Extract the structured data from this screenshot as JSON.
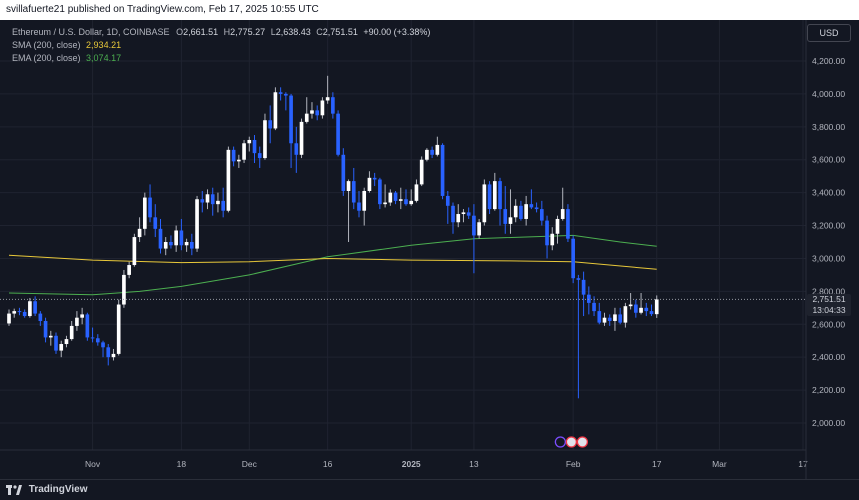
{
  "header": {
    "publisher_text": "svillafuerte21 published on TradingView.com, Feb 17, 2025 10:55 UTC"
  },
  "legend": {
    "symbol": "Ethereum / U.S. Dollar, 1D, COINBASE",
    "open_label": "O",
    "open": "2,661.51",
    "high_label": "H",
    "high": "2,775.27",
    "low_label": "L",
    "low": "2,638.43",
    "close_label": "C",
    "close": "2,751.51",
    "change": "+90.00 (+3.38%)",
    "sma_label": "SMA (200, close)",
    "sma_value": "2,934.21",
    "ema_label": "EMA (200, close)",
    "ema_value": "3,074.17"
  },
  "currency_button": "USD",
  "price_tag": {
    "price": "2,751.51",
    "countdown": "13:04:33"
  },
  "footer": {
    "brand": "TradingView"
  },
  "colors": {
    "up": "#ffffff",
    "down": "#2962ff",
    "sma": "#e8c83a",
    "ema": "#4caf50",
    "background": "#131722",
    "grid": "#1f2330"
  },
  "chart_data": {
    "type": "candlestick",
    "y_ticks": [
      "2,000.00",
      "2,200.00",
      "2,400.00",
      "2,600.00",
      "2,800.00",
      "3,000.00",
      "3,200.00",
      "3,400.00",
      "3,600.00",
      "3,800.00",
      "4,000.00",
      "4,200.00"
    ],
    "y_tick_values": [
      2000,
      2200,
      2400,
      2600,
      2800,
      3000,
      3200,
      3400,
      3600,
      3800,
      4000,
      4200
    ],
    "ylim": [
      1850,
      4400
    ],
    "x_ticks": [
      {
        "label": "Nov",
        "date": "2024-11-01",
        "bold": false
      },
      {
        "label": "18",
        "date": "2024-11-18",
        "bold": false
      },
      {
        "label": "Dec",
        "date": "2024-12-01",
        "bold": false
      },
      {
        "label": "16",
        "date": "2024-12-16",
        "bold": false
      },
      {
        "label": "2025",
        "date": "2025-01-01",
        "bold": true
      },
      {
        "label": "13",
        "date": "2025-01-13",
        "bold": false
      },
      {
        "label": "Feb",
        "date": "2025-02-01",
        "bold": false
      },
      {
        "label": "17",
        "date": "2025-02-17",
        "bold": false
      },
      {
        "label": "Mar",
        "date": "2025-03-01",
        "bold": false
      },
      {
        "label": "17",
        "date": "2025-03-17",
        "bold": false
      }
    ],
    "xlim": [
      "2024-10-16",
      "2025-03-17"
    ],
    "current_price": 2751.51,
    "candles": [
      {
        "d": "2024-10-16",
        "o": 2605,
        "h": 2690,
        "l": 2590,
        "c": 2665
      },
      {
        "d": "2024-10-17",
        "o": 2665,
        "h": 2695,
        "l": 2640,
        "c": 2680
      },
      {
        "d": "2024-10-18",
        "o": 2680,
        "h": 2700,
        "l": 2655,
        "c": 2675
      },
      {
        "d": "2024-10-19",
        "o": 2675,
        "h": 2690,
        "l": 2640,
        "c": 2650
      },
      {
        "d": "2024-10-20",
        "o": 2650,
        "h": 2760,
        "l": 2640,
        "c": 2740
      },
      {
        "d": "2024-10-21",
        "o": 2740,
        "h": 2770,
        "l": 2650,
        "c": 2665
      },
      {
        "d": "2024-10-22",
        "o": 2665,
        "h": 2680,
        "l": 2590,
        "c": 2620
      },
      {
        "d": "2024-10-23",
        "o": 2620,
        "h": 2640,
        "l": 2490,
        "c": 2520
      },
      {
        "d": "2024-10-24",
        "o": 2520,
        "h": 2560,
        "l": 2470,
        "c": 2530
      },
      {
        "d": "2024-10-25",
        "o": 2530,
        "h": 2550,
        "l": 2420,
        "c": 2440
      },
      {
        "d": "2024-10-26",
        "o": 2440,
        "h": 2500,
        "l": 2400,
        "c": 2480
      },
      {
        "d": "2024-10-27",
        "o": 2480,
        "h": 2530,
        "l": 2460,
        "c": 2510
      },
      {
        "d": "2024-10-28",
        "o": 2510,
        "h": 2620,
        "l": 2500,
        "c": 2590
      },
      {
        "d": "2024-10-29",
        "o": 2590,
        "h": 2680,
        "l": 2560,
        "c": 2640
      },
      {
        "d": "2024-10-30",
        "o": 2640,
        "h": 2700,
        "l": 2600,
        "c": 2660
      },
      {
        "d": "2024-10-31",
        "o": 2660,
        "h": 2670,
        "l": 2500,
        "c": 2520
      },
      {
        "d": "2024-11-01",
        "o": 2520,
        "h": 2580,
        "l": 2490,
        "c": 2515
      },
      {
        "d": "2024-11-02",
        "o": 2515,
        "h": 2540,
        "l": 2470,
        "c": 2490
      },
      {
        "d": "2024-11-03",
        "o": 2490,
        "h": 2500,
        "l": 2400,
        "c": 2460
      },
      {
        "d": "2024-11-04",
        "o": 2460,
        "h": 2480,
        "l": 2350,
        "c": 2400
      },
      {
        "d": "2024-11-05",
        "o": 2400,
        "h": 2450,
        "l": 2380,
        "c": 2420
      },
      {
        "d": "2024-11-06",
        "o": 2420,
        "h": 2750,
        "l": 2410,
        "c": 2720
      },
      {
        "d": "2024-11-07",
        "o": 2720,
        "h": 2930,
        "l": 2700,
        "c": 2900
      },
      {
        "d": "2024-11-08",
        "o": 2900,
        "h": 2980,
        "l": 2880,
        "c": 2960
      },
      {
        "d": "2024-11-09",
        "o": 2960,
        "h": 3150,
        "l": 2950,
        "c": 3130
      },
      {
        "d": "2024-11-10",
        "o": 3130,
        "h": 3250,
        "l": 3100,
        "c": 3180
      },
      {
        "d": "2024-11-11",
        "o": 3180,
        "h": 3400,
        "l": 3140,
        "c": 3370
      },
      {
        "d": "2024-11-12",
        "o": 3370,
        "h": 3450,
        "l": 3220,
        "c": 3250
      },
      {
        "d": "2024-11-13",
        "o": 3250,
        "h": 3330,
        "l": 3130,
        "c": 3180
      },
      {
        "d": "2024-11-14",
        "o": 3180,
        "h": 3240,
        "l": 3030,
        "c": 3060
      },
      {
        "d": "2024-11-15",
        "o": 3060,
        "h": 3130,
        "l": 3020,
        "c": 3100
      },
      {
        "d": "2024-11-16",
        "o": 3100,
        "h": 3140,
        "l": 3060,
        "c": 3080
      },
      {
        "d": "2024-11-17",
        "o": 3080,
        "h": 3200,
        "l": 3040,
        "c": 3170
      },
      {
        "d": "2024-11-18",
        "o": 3170,
        "h": 3240,
        "l": 3050,
        "c": 3080
      },
      {
        "d": "2024-11-19",
        "o": 3080,
        "h": 3120,
        "l": 3040,
        "c": 3100
      },
      {
        "d": "2024-11-20",
        "o": 3100,
        "h": 3150,
        "l": 3020,
        "c": 3060
      },
      {
        "d": "2024-11-21",
        "o": 3060,
        "h": 3380,
        "l": 3040,
        "c": 3360
      },
      {
        "d": "2024-11-22",
        "o": 3360,
        "h": 3410,
        "l": 3280,
        "c": 3340
      },
      {
        "d": "2024-11-23",
        "o": 3340,
        "h": 3420,
        "l": 3300,
        "c": 3390
      },
      {
        "d": "2024-11-24",
        "o": 3390,
        "h": 3430,
        "l": 3260,
        "c": 3330
      },
      {
        "d": "2024-11-25",
        "o": 3330,
        "h": 3400,
        "l": 3280,
        "c": 3350
      },
      {
        "d": "2024-11-26",
        "o": 3350,
        "h": 3430,
        "l": 3250,
        "c": 3290
      },
      {
        "d": "2024-11-27",
        "o": 3290,
        "h": 3680,
        "l": 3280,
        "c": 3660
      },
      {
        "d": "2024-11-28",
        "o": 3660,
        "h": 3680,
        "l": 3560,
        "c": 3590
      },
      {
        "d": "2024-11-29",
        "o": 3590,
        "h": 3630,
        "l": 3550,
        "c": 3600
      },
      {
        "d": "2024-11-30",
        "o": 3600,
        "h": 3720,
        "l": 3580,
        "c": 3700
      },
      {
        "d": "2024-12-01",
        "o": 3700,
        "h": 3740,
        "l": 3650,
        "c": 3720
      },
      {
        "d": "2024-12-02",
        "o": 3720,
        "h": 3750,
        "l": 3580,
        "c": 3640
      },
      {
        "d": "2024-12-03",
        "o": 3640,
        "h": 3680,
        "l": 3550,
        "c": 3610
      },
      {
        "d": "2024-12-04",
        "o": 3610,
        "h": 3880,
        "l": 3600,
        "c": 3840
      },
      {
        "d": "2024-12-05",
        "o": 3840,
        "h": 3930,
        "l": 3700,
        "c": 3790
      },
      {
        "d": "2024-12-06",
        "o": 3790,
        "h": 4040,
        "l": 3780,
        "c": 4010
      },
      {
        "d": "2024-12-07",
        "o": 4010,
        "h": 4040,
        "l": 3960,
        "c": 4000
      },
      {
        "d": "2024-12-08",
        "o": 4000,
        "h": 4010,
        "l": 3900,
        "c": 3990
      },
      {
        "d": "2024-12-09",
        "o": 3990,
        "h": 4000,
        "l": 3550,
        "c": 3700
      },
      {
        "d": "2024-12-10",
        "o": 3700,
        "h": 3800,
        "l": 3520,
        "c": 3630
      },
      {
        "d": "2024-12-11",
        "o": 3630,
        "h": 3850,
        "l": 3610,
        "c": 3830
      },
      {
        "d": "2024-12-12",
        "o": 3830,
        "h": 3980,
        "l": 3820,
        "c": 3880
      },
      {
        "d": "2024-12-13",
        "o": 3880,
        "h": 3950,
        "l": 3850,
        "c": 3900
      },
      {
        "d": "2024-12-14",
        "o": 3900,
        "h": 3930,
        "l": 3840,
        "c": 3870
      },
      {
        "d": "2024-12-15",
        "o": 3870,
        "h": 3980,
        "l": 3850,
        "c": 3960
      },
      {
        "d": "2024-12-16",
        "o": 3960,
        "h": 4110,
        "l": 3940,
        "c": 3980
      },
      {
        "d": "2024-12-17",
        "o": 3980,
        "h": 4010,
        "l": 3850,
        "c": 3880
      },
      {
        "d": "2024-12-18",
        "o": 3880,
        "h": 3900,
        "l": 3620,
        "c": 3630
      },
      {
        "d": "2024-12-19",
        "o": 3630,
        "h": 3670,
        "l": 3380,
        "c": 3410
      },
      {
        "d": "2024-12-20",
        "o": 3410,
        "h": 3480,
        "l": 3100,
        "c": 3470
      },
      {
        "d": "2024-12-21",
        "o": 3470,
        "h": 3550,
        "l": 3300,
        "c": 3340
      },
      {
        "d": "2024-12-22",
        "o": 3340,
        "h": 3410,
        "l": 3250,
        "c": 3290
      },
      {
        "d": "2024-12-23",
        "o": 3290,
        "h": 3430,
        "l": 3200,
        "c": 3410
      },
      {
        "d": "2024-12-24",
        "o": 3410,
        "h": 3530,
        "l": 3400,
        "c": 3490
      },
      {
        "d": "2024-12-25",
        "o": 3490,
        "h": 3520,
        "l": 3440,
        "c": 3480
      },
      {
        "d": "2024-12-26",
        "o": 3480,
        "h": 3490,
        "l": 3300,
        "c": 3330
      },
      {
        "d": "2024-12-27",
        "o": 3330,
        "h": 3450,
        "l": 3310,
        "c": 3340
      },
      {
        "d": "2024-12-28",
        "o": 3340,
        "h": 3420,
        "l": 3320,
        "c": 3400
      },
      {
        "d": "2024-12-29",
        "o": 3400,
        "h": 3410,
        "l": 3330,
        "c": 3350
      },
      {
        "d": "2024-12-30",
        "o": 3350,
        "h": 3430,
        "l": 3300,
        "c": 3360
      },
      {
        "d": "2024-12-31",
        "o": 3360,
        "h": 3420,
        "l": 3320,
        "c": 3330
      },
      {
        "d": "2025-01-01",
        "o": 3330,
        "h": 3420,
        "l": 3320,
        "c": 3350
      },
      {
        "d": "2025-01-02",
        "o": 3350,
        "h": 3480,
        "l": 3340,
        "c": 3450
      },
      {
        "d": "2025-01-03",
        "o": 3450,
        "h": 3620,
        "l": 3440,
        "c": 3600
      },
      {
        "d": "2025-01-04",
        "o": 3600,
        "h": 3670,
        "l": 3590,
        "c": 3660
      },
      {
        "d": "2025-01-05",
        "o": 3660,
        "h": 3680,
        "l": 3610,
        "c": 3630
      },
      {
        "d": "2025-01-06",
        "o": 3630,
        "h": 3740,
        "l": 3620,
        "c": 3690
      },
      {
        "d": "2025-01-07",
        "o": 3690,
        "h": 3700,
        "l": 3360,
        "c": 3380
      },
      {
        "d": "2025-01-08",
        "o": 3380,
        "h": 3410,
        "l": 3210,
        "c": 3320
      },
      {
        "d": "2025-01-09",
        "o": 3320,
        "h": 3340,
        "l": 3150,
        "c": 3220
      },
      {
        "d": "2025-01-10",
        "o": 3220,
        "h": 3330,
        "l": 3190,
        "c": 3270
      },
      {
        "d": "2025-01-11",
        "o": 3270,
        "h": 3300,
        "l": 3220,
        "c": 3280
      },
      {
        "d": "2025-01-12",
        "o": 3280,
        "h": 3310,
        "l": 3240,
        "c": 3260
      },
      {
        "d": "2025-01-13",
        "o": 3260,
        "h": 3330,
        "l": 2910,
        "c": 3140
      },
      {
        "d": "2025-01-14",
        "o": 3140,
        "h": 3240,
        "l": 3120,
        "c": 3220
      },
      {
        "d": "2025-01-15",
        "o": 3220,
        "h": 3480,
        "l": 3200,
        "c": 3450
      },
      {
        "d": "2025-01-16",
        "o": 3450,
        "h": 3470,
        "l": 3270,
        "c": 3300
      },
      {
        "d": "2025-01-17",
        "o": 3300,
        "h": 3520,
        "l": 3290,
        "c": 3470
      },
      {
        "d": "2025-01-18",
        "o": 3470,
        "h": 3490,
        "l": 3200,
        "c": 3300
      },
      {
        "d": "2025-01-19",
        "o": 3300,
        "h": 3440,
        "l": 3150,
        "c": 3210
      },
      {
        "d": "2025-01-20",
        "o": 3210,
        "h": 3420,
        "l": 3150,
        "c": 3250
      },
      {
        "d": "2025-01-21",
        "o": 3250,
        "h": 3360,
        "l": 3220,
        "c": 3320
      },
      {
        "d": "2025-01-22",
        "o": 3320,
        "h": 3350,
        "l": 3230,
        "c": 3240
      },
      {
        "d": "2025-01-23",
        "o": 3240,
        "h": 3380,
        "l": 3200,
        "c": 3330
      },
      {
        "d": "2025-01-24",
        "o": 3330,
        "h": 3420,
        "l": 3300,
        "c": 3310
      },
      {
        "d": "2025-01-25",
        "o": 3310,
        "h": 3340,
        "l": 3280,
        "c": 3300
      },
      {
        "d": "2025-01-26",
        "o": 3300,
        "h": 3350,
        "l": 3200,
        "c": 3230
      },
      {
        "d": "2025-01-27",
        "o": 3230,
        "h": 3260,
        "l": 3000,
        "c": 3080
      },
      {
        "d": "2025-01-28",
        "o": 3080,
        "h": 3190,
        "l": 3050,
        "c": 3150
      },
      {
        "d": "2025-01-29",
        "o": 3150,
        "h": 3260,
        "l": 3090,
        "c": 3240
      },
      {
        "d": "2025-01-30",
        "o": 3240,
        "h": 3430,
        "l": 3230,
        "c": 3300
      },
      {
        "d": "2025-01-31",
        "o": 3300,
        "h": 3330,
        "l": 3100,
        "c": 3120
      },
      {
        "d": "2025-02-01",
        "o": 3120,
        "h": 3140,
        "l": 2850,
        "c": 2880
      },
      {
        "d": "2025-02-02",
        "o": 2880,
        "h": 2900,
        "l": 2150,
        "c": 2870
      },
      {
        "d": "2025-02-03",
        "o": 2870,
        "h": 2920,
        "l": 2650,
        "c": 2780
      },
      {
        "d": "2025-02-04",
        "o": 2780,
        "h": 2830,
        "l": 2660,
        "c": 2730
      },
      {
        "d": "2025-02-05",
        "o": 2730,
        "h": 2770,
        "l": 2650,
        "c": 2680
      },
      {
        "d": "2025-02-06",
        "o": 2680,
        "h": 2730,
        "l": 2600,
        "c": 2610
      },
      {
        "d": "2025-02-07",
        "o": 2610,
        "h": 2670,
        "l": 2590,
        "c": 2640
      },
      {
        "d": "2025-02-08",
        "o": 2640,
        "h": 2660,
        "l": 2590,
        "c": 2620
      },
      {
        "d": "2025-02-09",
        "o": 2620,
        "h": 2700,
        "l": 2560,
        "c": 2660
      },
      {
        "d": "2025-02-10",
        "o": 2660,
        "h": 2700,
        "l": 2600,
        "c": 2610
      },
      {
        "d": "2025-02-11",
        "o": 2610,
        "h": 2730,
        "l": 2580,
        "c": 2710
      },
      {
        "d": "2025-02-12",
        "o": 2710,
        "h": 2790,
        "l": 2690,
        "c": 2720
      },
      {
        "d": "2025-02-13",
        "o": 2720,
        "h": 2750,
        "l": 2640,
        "c": 2670
      },
      {
        "d": "2025-02-14",
        "o": 2670,
        "h": 2790,
        "l": 2660,
        "c": 2700
      },
      {
        "d": "2025-02-15",
        "o": 2700,
        "h": 2730,
        "l": 2650,
        "c": 2680
      },
      {
        "d": "2025-02-16",
        "o": 2680,
        "h": 2720,
        "l": 2650,
        "c": 2661.51
      },
      {
        "d": "2025-02-17",
        "o": 2661.51,
        "h": 2775.27,
        "l": 2638.43,
        "c": 2751.51
      }
    ],
    "sma_points": [
      {
        "d": "2024-10-16",
        "v": 3020
      },
      {
        "d": "2024-11-01",
        "v": 2990
      },
      {
        "d": "2024-11-18",
        "v": 2975
      },
      {
        "d": "2024-12-01",
        "v": 2980
      },
      {
        "d": "2024-12-16",
        "v": 3000
      },
      {
        "d": "2025-01-01",
        "v": 2990
      },
      {
        "d": "2025-01-20",
        "v": 2985
      },
      {
        "d": "2025-02-01",
        "v": 2980
      },
      {
        "d": "2025-02-17",
        "v": 2934.21
      }
    ],
    "ema_points": [
      {
        "d": "2024-10-16",
        "v": 2790
      },
      {
        "d": "2024-11-01",
        "v": 2780
      },
      {
        "d": "2024-11-10",
        "v": 2800
      },
      {
        "d": "2024-11-18",
        "v": 2830
      },
      {
        "d": "2024-12-01",
        "v": 2900
      },
      {
        "d": "2024-12-16",
        "v": 3010
      },
      {
        "d": "2025-01-01",
        "v": 3080
      },
      {
        "d": "2025-01-13",
        "v": 3120
      },
      {
        "d": "2025-02-01",
        "v": 3140
      },
      {
        "d": "2025-02-10",
        "v": 3100
      },
      {
        "d": "2025-02-17",
        "v": 3074.17
      }
    ]
  }
}
